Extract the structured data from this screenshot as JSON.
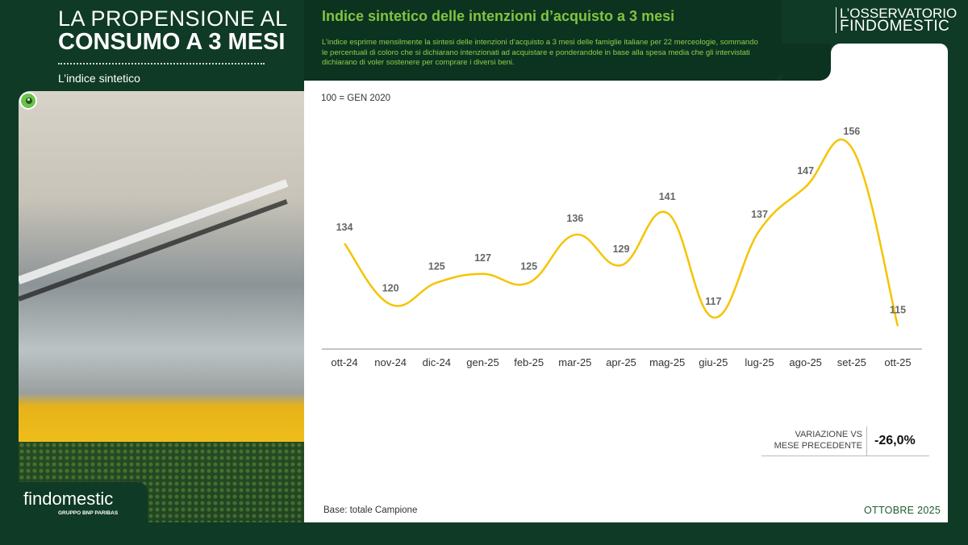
{
  "header": {
    "title_line1": "LA PROPENSIONE AL",
    "title_line2": "CONSUMO A 3 MESI",
    "subtitle": "L’indice sintetico",
    "brand_line1": "L’OSSERVATORIO",
    "brand_line2": "FINDOMESTIC"
  },
  "chart_header": {
    "title": "Indice sintetico delle intenzioni d’acquisto a 3 mesi",
    "description": "L’indice esprime mensilmente la sintesi delle intenzioni d’acquisto a 3 mesi delle famiglie italiane per 22 merceologie, sommando le percentuali di coloro che si dichiarano intenzionati ad acquistare e ponderandole in base alla spesa media che gli intervistati dichiarano di voler sostenere per comprare i diversi beni.",
    "base_note": "100 = GEN 2020"
  },
  "chart_data": {
    "type": "line",
    "categories": [
      "ott-24",
      "nov-24",
      "dic-24",
      "gen-25",
      "feb-25",
      "mar-25",
      "apr-25",
      "mag-25",
      "giu-25",
      "lug-25",
      "ago-25",
      "set-25",
      "ott-25"
    ],
    "series": [
      {
        "values": [
          134,
          120,
          125,
          127,
          125,
          136,
          129,
          141,
          117,
          137,
          147,
          156,
          115
        ]
      }
    ],
    "line_color": "#f5c400",
    "smooth": true,
    "grid": false
  },
  "variation": {
    "label_line1": "VARIAZIONE VS",
    "label_line2": "MESE PRECEDENTE",
    "value": "-26,0%"
  },
  "footer": {
    "base": "Base: totale Campione",
    "date": "OTTOBRE 2025"
  },
  "logo": {
    "name": "findomestic",
    "sub": "GRUPPO BNP PARIBAS"
  },
  "icons": [
    "eye-icon"
  ]
}
